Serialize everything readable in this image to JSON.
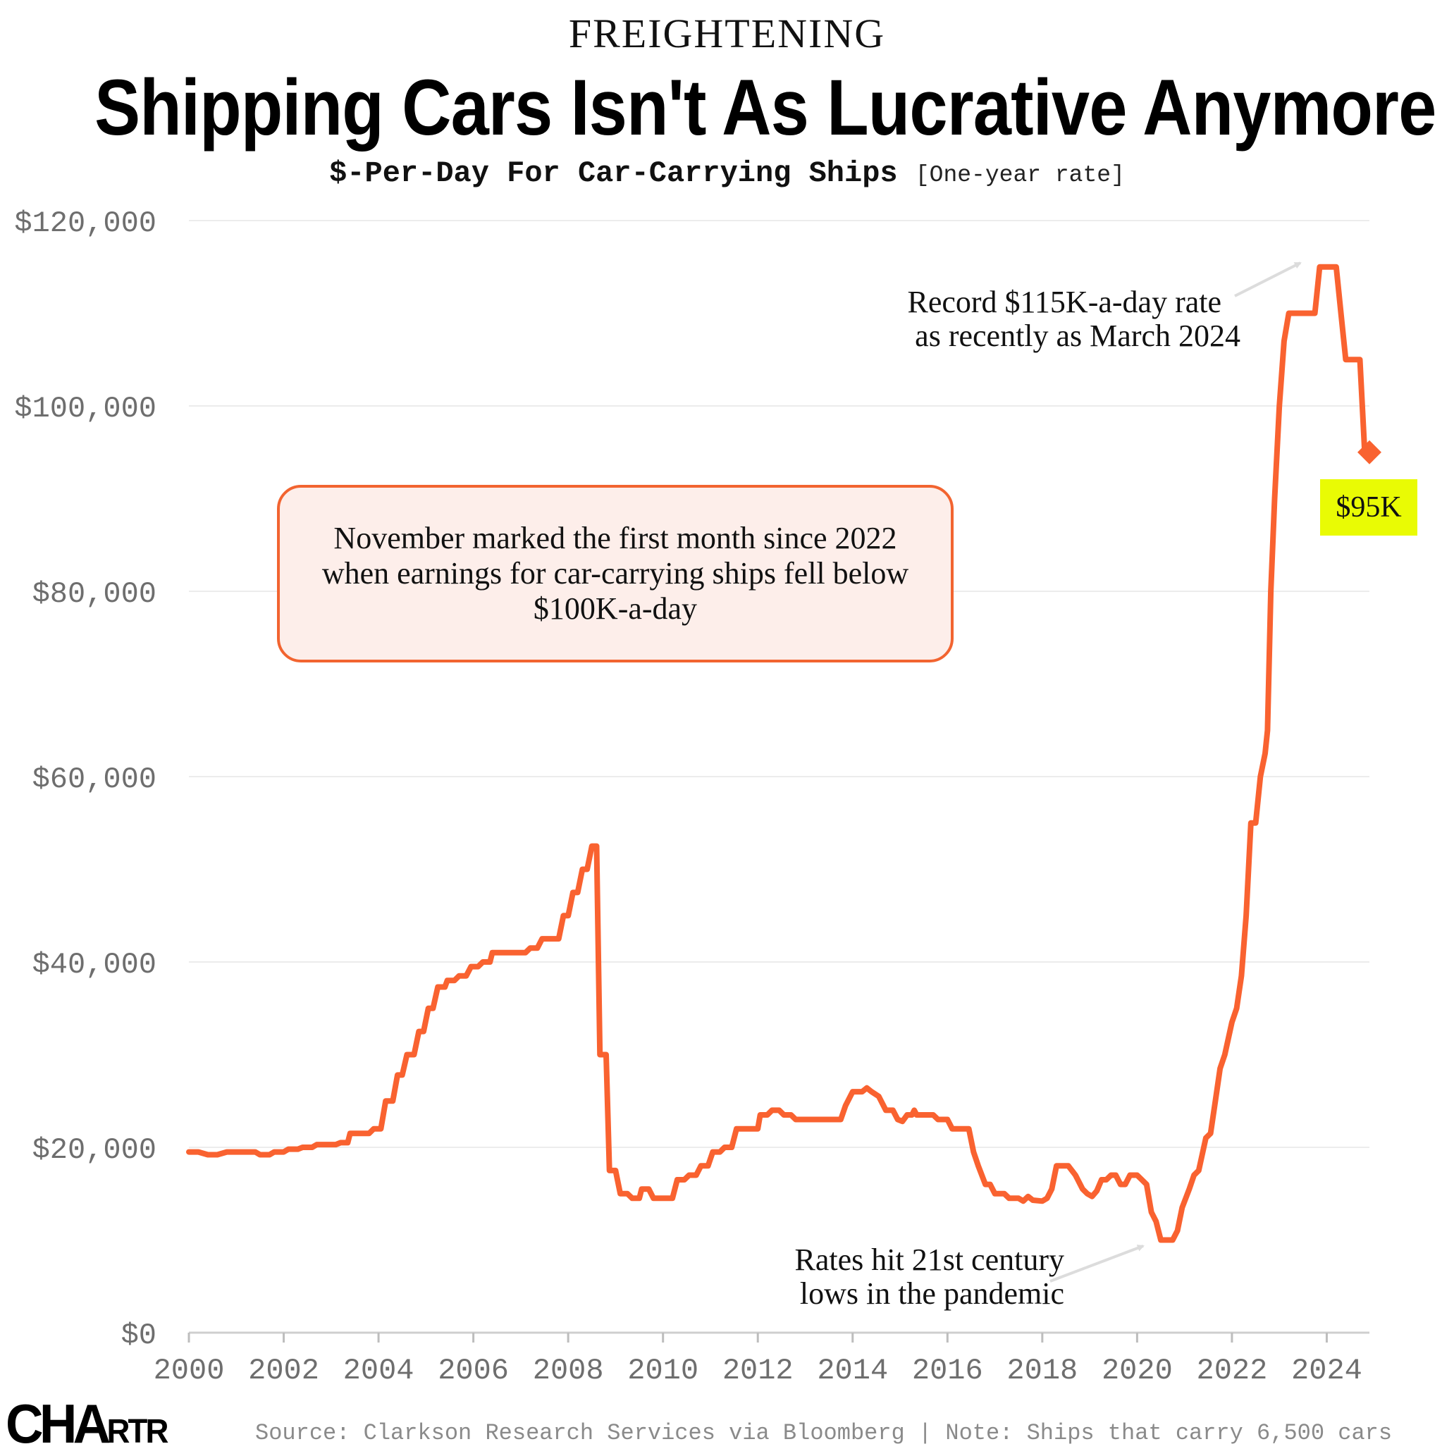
{
  "header": {
    "kicker": "FREIGHTENING",
    "title": "Shipping Cars Isn't As Lucrative Anymore",
    "subtitle_main": "$-Per-Day For Car-Carrying Ships",
    "subtitle_note": "[One-year rate]"
  },
  "colors": {
    "line": "#f96230",
    "badge": "#e9fb04",
    "callout_bg": "#fdeeea",
    "grid": "#ececec",
    "axis_text": "#6e6e6e"
  },
  "annotations": {
    "record_line1": "Record $115K-a-day rate",
    "record_line2": "as recently as March 2024",
    "callout": "November marked the first month since 2022 when earnings for car-carrying ships fell below $100K-a-day",
    "low_line1": "Rates hit 21st century",
    "low_line2": "lows in the pandemic",
    "end_label": "$95K"
  },
  "footer": {
    "logo_big": "CHA",
    "logo_small": "RTR",
    "source": "Source: Clarkson Research Services via Bloomberg | Note: Ships that carry 6,500 cars"
  },
  "chart_data": {
    "type": "line",
    "title": "Shipping Cars Isn't As Lucrative Anymore",
    "subtitle": "$-Per-Day For Car-Carrying Ships [One-year rate]",
    "xlabel": "",
    "ylabel": "",
    "xlim": [
      2000,
      2024.9
    ],
    "ylim": [
      0,
      120000
    ],
    "x_ticks": [
      2000,
      2002,
      2004,
      2006,
      2008,
      2010,
      2012,
      2014,
      2016,
      2018,
      2020,
      2022,
      2024
    ],
    "x_tick_labels": [
      "2000",
      "2002",
      "2004",
      "2006",
      "2008",
      "2010",
      "2012",
      "2014",
      "2016",
      "2018",
      "2020",
      "2022",
      "2024"
    ],
    "y_ticks": [
      0,
      20000,
      40000,
      60000,
      80000,
      100000,
      120000
    ],
    "y_tick_labels": [
      "$0",
      "$20,000",
      "$40,000",
      "$60,000",
      "$80,000",
      "$100,000",
      "$120,000"
    ],
    "grid": "horizontal",
    "legend": "none",
    "series": [
      {
        "points": [
          [
            2000.0,
            19500
          ],
          [
            2000.2,
            19500
          ],
          [
            2000.4,
            19200
          ],
          [
            2000.6,
            19200
          ],
          [
            2000.8,
            19500
          ],
          [
            2001.2,
            19500
          ],
          [
            2001.4,
            19500
          ],
          [
            2001.5,
            19200
          ],
          [
            2001.7,
            19200
          ],
          [
            2001.8,
            19500
          ],
          [
            2002.0,
            19500
          ],
          [
            2002.1,
            19800
          ],
          [
            2002.3,
            19800
          ],
          [
            2002.4,
            20000
          ],
          [
            2002.6,
            20000
          ],
          [
            2002.7,
            20300
          ],
          [
            2002.9,
            20300
          ],
          [
            2003.0,
            20300
          ],
          [
            2003.1,
            20300
          ],
          [
            2003.2,
            20500
          ],
          [
            2003.35,
            20500
          ],
          [
            2003.4,
            21500
          ],
          [
            2003.8,
            21500
          ],
          [
            2003.9,
            22000
          ],
          [
            2004.05,
            22000
          ],
          [
            2004.15,
            25000
          ],
          [
            2004.3,
            25000
          ],
          [
            2004.4,
            27800
          ],
          [
            2004.5,
            27800
          ],
          [
            2004.6,
            30000
          ],
          [
            2004.75,
            30000
          ],
          [
            2004.85,
            32500
          ],
          [
            2004.95,
            32500
          ],
          [
            2005.05,
            35000
          ],
          [
            2005.15,
            35000
          ],
          [
            2005.25,
            37300
          ],
          [
            2005.4,
            37300
          ],
          [
            2005.45,
            38000
          ],
          [
            2005.6,
            38000
          ],
          [
            2005.7,
            38500
          ],
          [
            2005.85,
            38500
          ],
          [
            2005.95,
            39500
          ],
          [
            2006.1,
            39500
          ],
          [
            2006.2,
            40000
          ],
          [
            2006.35,
            40000
          ],
          [
            2006.4,
            41000
          ],
          [
            2006.6,
            41000
          ],
          [
            2006.9,
            41000
          ],
          [
            2007.1,
            41000
          ],
          [
            2007.2,
            41500
          ],
          [
            2007.35,
            41500
          ],
          [
            2007.45,
            42500
          ],
          [
            2007.8,
            42500
          ],
          [
            2007.9,
            45000
          ],
          [
            2008.0,
            45000
          ],
          [
            2008.1,
            47500
          ],
          [
            2008.2,
            47500
          ],
          [
            2008.3,
            50000
          ],
          [
            2008.4,
            50000
          ],
          [
            2008.5,
            52500
          ],
          [
            2008.6,
            52500
          ],
          [
            2008.67,
            30000
          ],
          [
            2008.8,
            30000
          ],
          [
            2008.87,
            17500
          ],
          [
            2009.0,
            17500
          ],
          [
            2009.1,
            15000
          ],
          [
            2009.25,
            15000
          ],
          [
            2009.35,
            14500
          ],
          [
            2009.5,
            14500
          ],
          [
            2009.55,
            15500
          ],
          [
            2009.7,
            15500
          ],
          [
            2009.8,
            14500
          ],
          [
            2010.0,
            14500
          ],
          [
            2010.2,
            14500
          ],
          [
            2010.3,
            16500
          ],
          [
            2010.45,
            16500
          ],
          [
            2010.55,
            17000
          ],
          [
            2010.7,
            17000
          ],
          [
            2010.8,
            18000
          ],
          [
            2010.95,
            18000
          ],
          [
            2011.05,
            19500
          ],
          [
            2011.2,
            19500
          ],
          [
            2011.3,
            20000
          ],
          [
            2011.45,
            20000
          ],
          [
            2011.55,
            22000
          ],
          [
            2012.0,
            22000
          ],
          [
            2012.05,
            23500
          ],
          [
            2012.2,
            23500
          ],
          [
            2012.3,
            24000
          ],
          [
            2012.45,
            24000
          ],
          [
            2012.55,
            23500
          ],
          [
            2012.7,
            23500
          ],
          [
            2012.8,
            23000
          ],
          [
            2013.0,
            23000
          ],
          [
            2013.5,
            23000
          ],
          [
            2013.75,
            23000
          ],
          [
            2013.85,
            24500
          ],
          [
            2014.0,
            26000
          ],
          [
            2014.2,
            26000
          ],
          [
            2014.3,
            26400
          ],
          [
            2014.4,
            26000
          ],
          [
            2014.55,
            25500
          ],
          [
            2014.7,
            24000
          ],
          [
            2014.85,
            24000
          ],
          [
            2014.95,
            23000
          ],
          [
            2015.05,
            22800
          ],
          [
            2015.15,
            23500
          ],
          [
            2015.25,
            23500
          ],
          [
            2015.3,
            24000
          ],
          [
            2015.35,
            23500
          ],
          [
            2015.5,
            23500
          ],
          [
            2015.7,
            23500
          ],
          [
            2015.8,
            23000
          ],
          [
            2016.0,
            23000
          ],
          [
            2016.1,
            22000
          ],
          [
            2016.45,
            22000
          ],
          [
            2016.55,
            19500
          ],
          [
            2016.65,
            18000
          ],
          [
            2016.8,
            16000
          ],
          [
            2016.9,
            16000
          ],
          [
            2017.0,
            15000
          ],
          [
            2017.2,
            15000
          ],
          [
            2017.3,
            14500
          ],
          [
            2017.5,
            14500
          ],
          [
            2017.6,
            14200
          ],
          [
            2017.7,
            14700
          ],
          [
            2017.8,
            14300
          ],
          [
            2018.0,
            14200
          ],
          [
            2018.1,
            14500
          ],
          [
            2018.2,
            15500
          ],
          [
            2018.3,
            18000
          ],
          [
            2018.55,
            18000
          ],
          [
            2018.7,
            17000
          ],
          [
            2018.85,
            15500
          ],
          [
            2018.95,
            15000
          ],
          [
            2019.05,
            14700
          ],
          [
            2019.15,
            15300
          ],
          [
            2019.25,
            16500
          ],
          [
            2019.35,
            16500
          ],
          [
            2019.45,
            17000
          ],
          [
            2019.55,
            17000
          ],
          [
            2019.65,
            16000
          ],
          [
            2019.75,
            16000
          ],
          [
            2019.85,
            17000
          ],
          [
            2020.0,
            17000
          ],
          [
            2020.1,
            16500
          ],
          [
            2020.2,
            16000
          ],
          [
            2020.3,
            13000
          ],
          [
            2020.4,
            12000
          ],
          [
            2020.5,
            10000
          ],
          [
            2020.65,
            10000
          ],
          [
            2020.75,
            10000
          ],
          [
            2020.85,
            11000
          ],
          [
            2020.95,
            13500
          ],
          [
            2021.1,
            15500
          ],
          [
            2021.2,
            17000
          ],
          [
            2021.3,
            17500
          ],
          [
            2021.45,
            21000
          ],
          [
            2021.55,
            21500
          ],
          [
            2021.65,
            25000
          ],
          [
            2021.75,
            28500
          ],
          [
            2021.85,
            30000
          ],
          [
            2022.0,
            33500
          ],
          [
            2022.1,
            35000
          ],
          [
            2022.2,
            38500
          ],
          [
            2022.3,
            45000
          ],
          [
            2022.4,
            55000
          ],
          [
            2022.5,
            55000
          ],
          [
            2022.6,
            60000
          ],
          [
            2022.7,
            62500
          ],
          [
            2022.75,
            65000
          ],
          [
            2022.82,
            80000
          ],
          [
            2022.9,
            90000
          ],
          [
            2023.0,
            100000
          ],
          [
            2023.1,
            107000
          ],
          [
            2023.2,
            110000
          ],
          [
            2023.5,
            110000
          ],
          [
            2023.75,
            110000
          ],
          [
            2023.85,
            115000
          ],
          [
            2024.2,
            115000
          ],
          [
            2024.3,
            110000
          ],
          [
            2024.4,
            105000
          ],
          [
            2024.7,
            105000
          ],
          [
            2024.8,
            95000
          ]
        ]
      }
    ],
    "end_marker": {
      "x": 2024.9,
      "y": 95000,
      "label": "$95K"
    }
  }
}
